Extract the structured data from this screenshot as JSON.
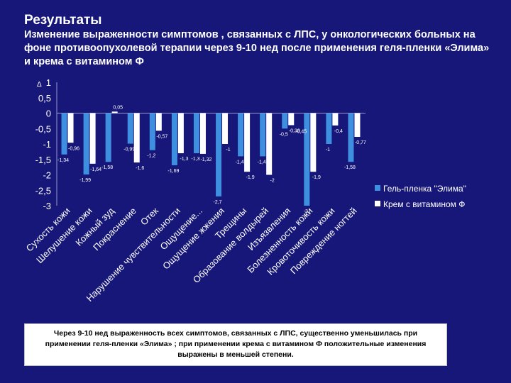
{
  "slide": {
    "title": "Результаты",
    "subtitle": "Изменение выраженности симптомов , связанных с ЛПС, у онкологических больных на фоне противоопухолевой терапии через 9-10 нед после применения геля-пленки «Элима» и крема с витамином Ф",
    "note": "Через 9-10 нед выраженность всех симптомов, связанных с ЛПС, существенно уменьшилась при применении геля-пленки «Элима» ; при применении крема с витамином Ф положительные изменения выражены в меньшей степени."
  },
  "colors": {
    "background": "#17177a",
    "series_elima": "#3f8fe0",
    "series_cream": "#ffffff",
    "text": "#ffffff"
  },
  "chart_data": {
    "type": "bar",
    "title": "",
    "xlabel": "",
    "ylabel": "Δ",
    "ylim": [
      -3,
      1
    ],
    "yticks": [
      1,
      0.5,
      0,
      -0.5,
      -1,
      -1.5,
      -2,
      -2.5,
      -3
    ],
    "ytick_labels": [
      "1",
      "0,5",
      "0",
      "-0,5",
      "-1",
      "-1,5",
      "-2",
      "-2,5",
      "-3"
    ],
    "legend_position": "right",
    "categories": [
      "Сухость кожи",
      "Шелушение кожи",
      "Кожный зуд",
      "Покраснение",
      "Отек",
      "Нарушение чувствительности",
      "Ощущение...",
      "Ощущение жжения",
      "Трещины",
      "Образование волдырей",
      "Изъязвления",
      "Болезненность кожи",
      "Кровоточивость кожи",
      "Повреждение ногтей"
    ],
    "series": [
      {
        "name": "Гель-пленка \"Элима\"",
        "values": [
          -1.34,
          -1.99,
          -1.58,
          -0.99,
          -1.2,
          -1.69,
          -1.3,
          -2.7,
          -1.4,
          -1.4,
          -0.5,
          -3,
          -1,
          -1.58
        ],
        "labels": [
          "-1,34",
          "-1,99",
          "-1,58",
          "-0,99",
          "-1,2",
          "-1,69",
          "-1,3",
          "-2,7",
          "-1,4",
          "-1,4",
          "-0,5",
          "-3",
          "-1",
          "-1,58"
        ]
      },
      {
        "name": "Крем с витамином Ф",
        "values": [
          -0.96,
          -1.64,
          0.05,
          -1.6,
          -0.57,
          -1.3,
          -1.32,
          -1,
          -1.9,
          -2,
          -0.39,
          -1.9,
          -0.4,
          -0.77
        ],
        "labels": [
          "-0,96",
          "-1,64",
          "0,05",
          "-1,6",
          "-0,57",
          "-1,3",
          "-1,32",
          "-1",
          "-1,9",
          "-2",
          "-0,39",
          "-1,9",
          "-0,4",
          "-0,77"
        ]
      }
    ],
    "extra_labels": [
      "-0,45"
    ]
  }
}
